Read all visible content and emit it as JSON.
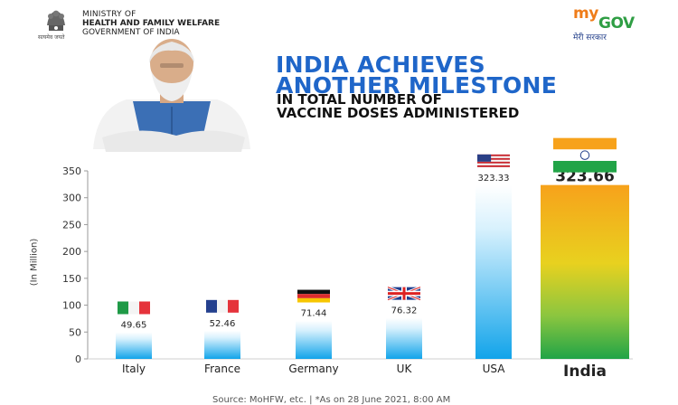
{
  "header": {
    "ministry_line1": "MINISTRY OF",
    "ministry_line2": "HEALTH AND FAMILY WELFARE",
    "ministry_line3": "GOVERNMENT OF INDIA",
    "emblem_caption": "सत्यमेव जयते",
    "mygov_my": "my",
    "mygov_gov": "GOV",
    "mygov_tagline": "मेरी सरकार"
  },
  "headline": {
    "line1": "INDIA ACHIEVES",
    "line2": "ANOTHER MILESTONE",
    "sub1": "IN TOTAL NUMBER OF",
    "sub2": "VACCINE DOSES ADMINISTERED"
  },
  "colors": {
    "headline_blue": "#1f66c9",
    "bar_top": "#ffffff",
    "bar_bottom": "#12a4ea",
    "india_saffron": "#f7a21b",
    "india_green": "#21a447"
  },
  "chart_data": {
    "type": "bar",
    "categories": [
      "Italy",
      "France",
      "Germany",
      "UK",
      "USA",
      "India"
    ],
    "values": [
      49.65,
      52.46,
      71.44,
      76.32,
      323.33,
      323.66
    ],
    "value_labels": [
      "49.65",
      "52.46",
      "71.44",
      "76.32",
      "323.33",
      "323.66"
    ],
    "flags": [
      "italy-flag",
      "france-flag",
      "germany-flag",
      "uk-flag",
      "usa-flag",
      "india-flag"
    ],
    "ylabel": "(In Million)",
    "xlabel": "",
    "ylim": [
      0,
      350
    ],
    "yticks": [
      0,
      50,
      100,
      150,
      200,
      250,
      300,
      350
    ],
    "grid": false,
    "highlight": "India"
  },
  "footer": {
    "source": "Source: MoHFW, etc.  |  *As on 28 June 2021, 8:00 AM"
  }
}
